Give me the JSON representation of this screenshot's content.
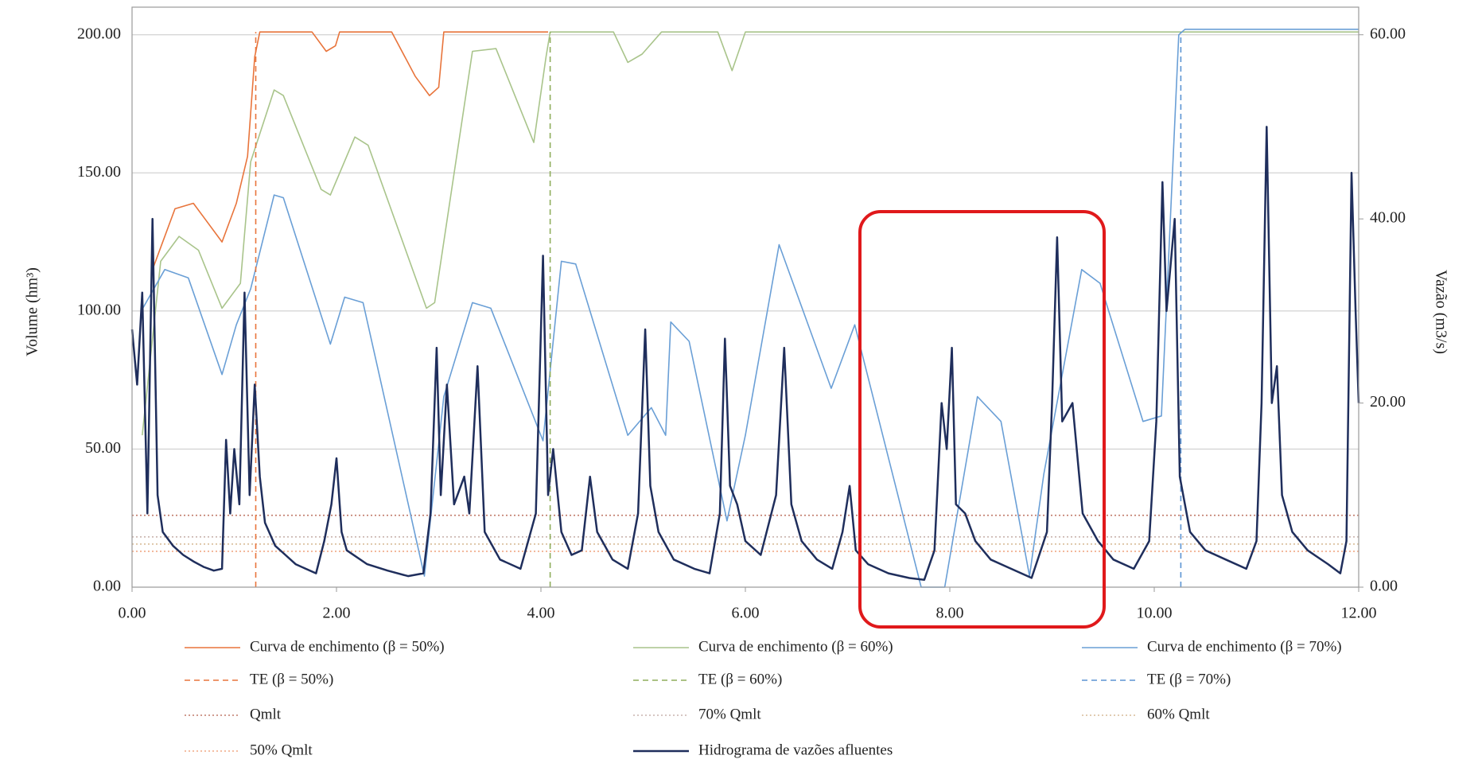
{
  "chart_data": {
    "type": "line",
    "y_label": "Volume (hm³)",
    "y2_label": "Vazão (m3/s)",
    "xlim": [
      0,
      12
    ],
    "xticks": [
      {
        "value": 0,
        "label": "0.00"
      },
      {
        "value": 2,
        "label": "2.00"
      },
      {
        "value": 4,
        "label": "4.00"
      },
      {
        "value": 6,
        "label": "6.00"
      },
      {
        "value": 8,
        "label": "8.00"
      },
      {
        "value": 10,
        "label": "10.00"
      },
      {
        "value": 12,
        "label": "12.00"
      }
    ],
    "ylim": [
      0,
      210
    ],
    "yticks": [
      {
        "value": 0,
        "label": "0.00"
      },
      {
        "value": 50,
        "label": "50.00"
      },
      {
        "value": 100,
        "label": "100.00"
      },
      {
        "value": 150,
        "label": "150.00"
      },
      {
        "value": 200,
        "label": "200.00"
      }
    ],
    "y2lim": [
      0,
      63
    ],
    "y2ticks": [
      {
        "value": 0,
        "label": "0.00"
      },
      {
        "value": 20,
        "label": "20.00"
      },
      {
        "value": 40,
        "label": "40.00"
      },
      {
        "value": 60,
        "label": "60.00"
      }
    ],
    "grid": true,
    "series": [
      {
        "name": "Curva de enchimento (β = 50%)",
        "color": "#e8743b",
        "style": "solid",
        "x": [
          0.2,
          0.42,
          0.6,
          0.88,
          1.02,
          1.13,
          1.2,
          1.25,
          1.76,
          1.9,
          1.99,
          2.03,
          2.54,
          2.77,
          2.91,
          3.0,
          3.05,
          4.07
        ],
        "values": [
          115,
          137,
          139,
          125,
          139,
          156,
          192,
          201,
          201,
          194,
          196,
          201,
          201,
          185,
          178,
          181,
          201,
          201
        ]
      },
      {
        "name": "Curva de enchimento (β = 60%)",
        "color": "#a9c48b",
        "style": "solid",
        "x": [
          0.1,
          0.28,
          0.46,
          0.65,
          0.88,
          1.06,
          1.16,
          1.39,
          1.48,
          1.85,
          1.94,
          2.18,
          2.31,
          2.88,
          2.96,
          3.33,
          3.56,
          3.93,
          4.05,
          4.09,
          4.71,
          4.85,
          4.99,
          5.18,
          5.73,
          5.87,
          6.0,
          12
        ],
        "values": [
          55,
          118,
          127,
          122,
          101,
          110,
          154,
          180,
          178,
          144,
          142,
          163,
          160,
          101,
          103,
          194,
          195,
          161,
          192,
          201,
          201,
          190,
          193,
          201,
          201,
          187,
          201,
          201
        ]
      },
      {
        "name": "Curva de enchimento (β = 70%)",
        "color": "#6a9fd6",
        "style": "solid",
        "x": [
          0.09,
          0.32,
          0.55,
          0.88,
          1.02,
          1.16,
          1.39,
          1.48,
          1.94,
          2.08,
          2.26,
          2.86,
          3.05,
          3.33,
          3.51,
          4.02,
          4.2,
          4.34,
          4.85,
          5.08,
          5.22,
          5.27,
          5.45,
          5.82,
          6.0,
          6.33,
          6.84,
          7.07,
          7.72,
          7.95,
          8.27,
          8.5,
          8.78,
          8.92,
          9.29,
          9.47,
          9.89,
          10.07,
          10.24,
          10.3,
          12
        ],
        "values": [
          100,
          115,
          112,
          77,
          95,
          108,
          142,
          141,
          88,
          105,
          103,
          4,
          69,
          103,
          101,
          53,
          118,
          117,
          55,
          65,
          55,
          96,
          89,
          24,
          55,
          124,
          72,
          95,
          0,
          0,
          69,
          60,
          4,
          41,
          115,
          110,
          60,
          62,
          200,
          202,
          202
        ]
      },
      {
        "name": "TE (β = 50%)",
        "color": "#e8743b",
        "style": "dashed",
        "x": [
          1.21,
          1.21
        ],
        "values": [
          0,
          201
        ]
      },
      {
        "name": "TE (β = 60%)",
        "color": "#8fae5c",
        "style": "dashed",
        "x": [
          4.09,
          4.09
        ],
        "values": [
          0,
          201
        ]
      },
      {
        "name": "TE (β = 70%)",
        "color": "#5b93d3",
        "style": "dashed",
        "x": [
          10.26,
          10.26
        ],
        "values": [
          0,
          201
        ]
      },
      {
        "name": "Qmlt",
        "color": "#c07a6a",
        "style": "dotted",
        "axis": "y2",
        "x": [
          0,
          12
        ],
        "values": [
          7.8,
          7.8
        ]
      },
      {
        "name": "70% Qmlt",
        "color": "#c9b3ad",
        "style": "dotted",
        "axis": "y2",
        "x": [
          0,
          12
        ],
        "values": [
          5.46,
          5.46
        ]
      },
      {
        "name": "60% Qmlt",
        "color": "#d8bc98",
        "style": "dotted",
        "axis": "y2",
        "x": [
          0,
          12
        ],
        "values": [
          4.68,
          4.68
        ]
      },
      {
        "name": "50% Qmlt",
        "color": "#f0a884",
        "style": "dotted",
        "axis": "y2",
        "x": [
          0,
          12
        ],
        "values": [
          3.9,
          3.9
        ]
      },
      {
        "name": "Hidrograma de vazões afluentes",
        "color": "#1f2e5c",
        "style": "solid",
        "axis": "y2",
        "width": 2.5,
        "x": [
          0,
          0.05,
          0.1,
          0.15,
          0.2,
          0.25,
          0.3,
          0.4,
          0.5,
          0.6,
          0.7,
          0.8,
          0.88,
          0.92,
          0.96,
          1.0,
          1.05,
          1.1,
          1.15,
          1.2,
          1.25,
          1.3,
          1.4,
          1.5,
          1.6,
          1.7,
          1.8,
          1.88,
          1.95,
          2.0,
          2.05,
          2.1,
          2.3,
          2.5,
          2.7,
          2.85,
          2.92,
          2.98,
          3.02,
          3.08,
          3.15,
          3.25,
          3.3,
          3.38,
          3.45,
          3.6,
          3.8,
          3.95,
          4.02,
          4.07,
          4.12,
          4.2,
          4.3,
          4.4,
          4.48,
          4.55,
          4.7,
          4.85,
          4.95,
          5.02,
          5.07,
          5.15,
          5.3,
          5.5,
          5.65,
          5.75,
          5.8,
          5.85,
          5.92,
          6.0,
          6.15,
          6.3,
          6.38,
          6.45,
          6.55,
          6.7,
          6.85,
          6.95,
          7.02,
          7.08,
          7.2,
          7.4,
          7.6,
          7.75,
          7.85,
          7.92,
          7.97,
          8.02,
          8.06,
          8.15,
          8.25,
          8.4,
          8.6,
          8.8,
          8.95,
          9.0,
          9.05,
          9.1,
          9.2,
          9.3,
          9.45,
          9.6,
          9.8,
          9.95,
          10.02,
          10.08,
          10.12,
          10.2,
          10.25,
          10.35,
          10.5,
          10.7,
          10.9,
          11.0,
          11.05,
          11.1,
          11.15,
          11.2,
          11.25,
          11.35,
          11.5,
          11.7,
          11.82,
          11.88,
          11.93,
          11.97,
          12.0
        ],
        "values": [
          28,
          22,
          32,
          8,
          40,
          10,
          6,
          4.5,
          3.5,
          2.8,
          2.2,
          1.8,
          2,
          16,
          8,
          15,
          9,
          32,
          10,
          22,
          12,
          7,
          4.5,
          3.5,
          2.5,
          2,
          1.5,
          5,
          9,
          14,
          6,
          4,
          2.5,
          1.8,
          1.2,
          1.5,
          8,
          26,
          10,
          22,
          9,
          12,
          8,
          24,
          6,
          3,
          2,
          8,
          36,
          10,
          15,
          6,
          3.5,
          4,
          12,
          6,
          3,
          2,
          8,
          28,
          11,
          6,
          3,
          2,
          1.5,
          8,
          27,
          11,
          9,
          5,
          3.5,
          10,
          26,
          9,
          5,
          3,
          2,
          6,
          11,
          4,
          2.5,
          1.5,
          1,
          0.8,
          4,
          20,
          15,
          26,
          9,
          8,
          5,
          3,
          2,
          1,
          6,
          20,
          38,
          18,
          20,
          8,
          5,
          3,
          2,
          5,
          18,
          44,
          30,
          40,
          12,
          6,
          4,
          3,
          2,
          5,
          20,
          50,
          20,
          24,
          10,
          6,
          4,
          2.5,
          1.5,
          5,
          45,
          30,
          20
        ]
      }
    ]
  }
}
